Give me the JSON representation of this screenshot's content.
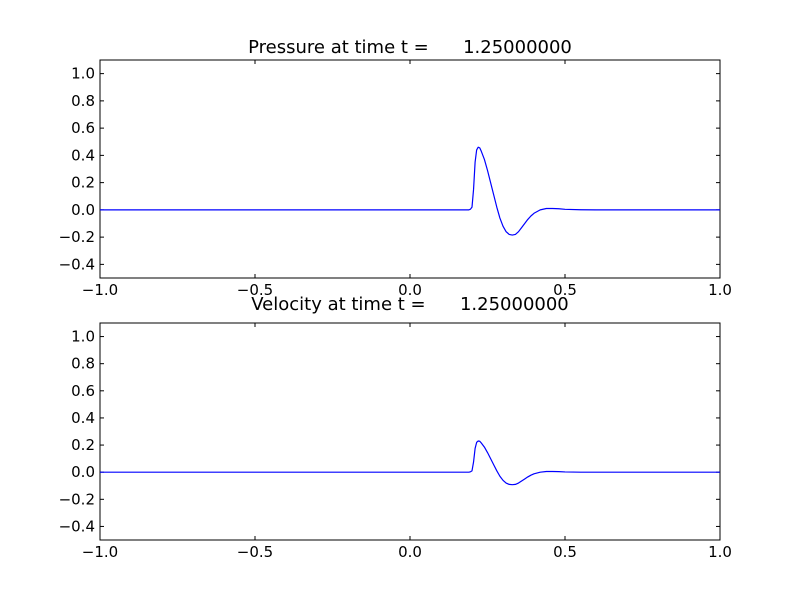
{
  "chart_data": [
    {
      "type": "line",
      "title": "Pressure at time t =      1.25000000",
      "xlabel": "",
      "ylabel": "",
      "xlim": [
        -1.0,
        1.0
      ],
      "ylim": [
        -0.5,
        1.1
      ],
      "x_ticks": [
        -1.0,
        -0.5,
        0.0,
        0.5,
        1.0
      ],
      "x_tick_labels": [
        "−1.0",
        "−0.5",
        "0.0",
        "0.5",
        "1.0"
      ],
      "y_ticks": [
        1.0,
        0.8,
        0.6,
        0.4,
        0.2,
        0.0,
        -0.2,
        -0.4
      ],
      "y_tick_labels": [
        "1.0",
        "0.8",
        "0.6",
        "0.4",
        "0.2",
        "0.0",
        "−0.2",
        "−0.4"
      ],
      "grid": false,
      "line_color": "#0000ff",
      "series": [
        {
          "x": [
            -1.0,
            0.0,
            0.18,
            0.19,
            0.195,
            0.2,
            0.205,
            0.21,
            0.215,
            0.22,
            0.225,
            0.23,
            0.24,
            0.25,
            0.26,
            0.27,
            0.28,
            0.29,
            0.3,
            0.31,
            0.32,
            0.33,
            0.34,
            0.35,
            0.36,
            0.37,
            0.38,
            0.39,
            0.4,
            0.42,
            0.44,
            0.46,
            0.48,
            0.5,
            0.55,
            0.6,
            1.0
          ],
          "y": [
            0.0,
            0.0,
            0.0,
            0.0,
            0.005,
            0.02,
            0.15,
            0.35,
            0.44,
            0.46,
            0.455,
            0.43,
            0.37,
            0.29,
            0.2,
            0.11,
            0.02,
            -0.06,
            -0.12,
            -0.16,
            -0.18,
            -0.185,
            -0.18,
            -0.16,
            -0.13,
            -0.1,
            -0.07,
            -0.045,
            -0.025,
            0.0,
            0.01,
            0.01,
            0.008,
            0.004,
            0.001,
            0.0,
            0.0
          ]
        }
      ]
    },
    {
      "type": "line",
      "title": "Velocity at time t =      1.25000000",
      "xlabel": "",
      "ylabel": "",
      "xlim": [
        -1.0,
        1.0
      ],
      "ylim": [
        -0.5,
        1.1
      ],
      "x_ticks": [
        -1.0,
        -0.5,
        0.0,
        0.5,
        1.0
      ],
      "x_tick_labels": [
        "−1.0",
        "−0.5",
        "0.0",
        "0.5",
        "1.0"
      ],
      "y_ticks": [
        1.0,
        0.8,
        0.6,
        0.4,
        0.2,
        0.0,
        -0.2,
        -0.4
      ],
      "y_tick_labels": [
        "1.0",
        "0.8",
        "0.6",
        "0.4",
        "0.2",
        "0.0",
        "−0.2",
        "−0.4"
      ],
      "grid": false,
      "line_color": "#0000ff",
      "series": [
        {
          "x": [
            -1.0,
            0.0,
            0.18,
            0.19,
            0.195,
            0.2,
            0.205,
            0.21,
            0.215,
            0.22,
            0.225,
            0.23,
            0.24,
            0.25,
            0.26,
            0.27,
            0.28,
            0.29,
            0.3,
            0.31,
            0.32,
            0.33,
            0.34,
            0.35,
            0.36,
            0.37,
            0.38,
            0.39,
            0.4,
            0.42,
            0.44,
            0.46,
            0.48,
            0.5,
            0.55,
            0.6,
            1.0
          ],
          "y": [
            0.0,
            0.0,
            0.0,
            0.0,
            0.003,
            0.01,
            0.075,
            0.175,
            0.22,
            0.23,
            0.228,
            0.215,
            0.185,
            0.145,
            0.1,
            0.055,
            0.01,
            -0.03,
            -0.06,
            -0.08,
            -0.09,
            -0.092,
            -0.09,
            -0.08,
            -0.065,
            -0.05,
            -0.035,
            -0.022,
            -0.012,
            0.0,
            0.005,
            0.005,
            0.004,
            0.002,
            0.0,
            0.0,
            0.0
          ]
        }
      ]
    }
  ]
}
